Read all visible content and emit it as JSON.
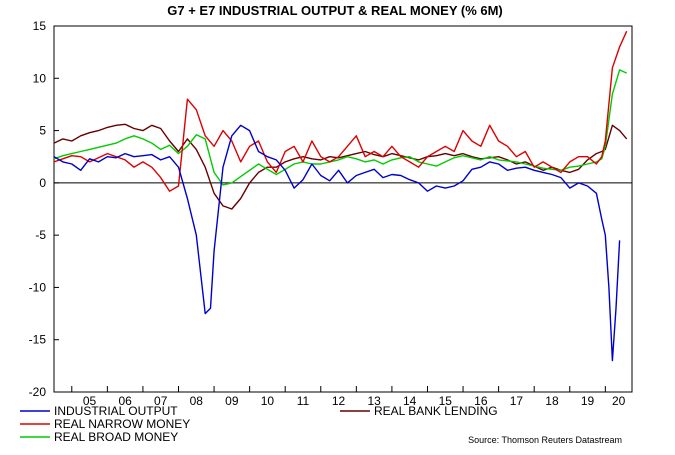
{
  "chart_data": {
    "type": "line",
    "title": "G7 + E7 INDUSTRIAL OUTPUT & REAL MONEY (% 6M)",
    "ylim": [
      -20,
      15
    ],
    "yticks": [
      15,
      10,
      5,
      0,
      -5,
      -10,
      -15,
      -20
    ],
    "ytick_labels": [
      "15",
      "10",
      "5",
      "0",
      "-5",
      "-10",
      "-15",
      "-20"
    ],
    "xlim": [
      2004.5,
      2020.75
    ],
    "xticks": [
      2005,
      2006,
      2007,
      2008,
      2009,
      2010,
      2011,
      2012,
      2013,
      2014,
      2015,
      2016,
      2017,
      2018,
      2019,
      2020
    ],
    "xtick_labels": [
      "05",
      "06",
      "07",
      "08",
      "09",
      "10",
      "11",
      "12",
      "13",
      "14",
      "15",
      "16",
      "17",
      "18",
      "19",
      "20"
    ],
    "zero_line": true,
    "source": "Source: Thomson Reuters Datastream",
    "series": [
      {
        "name": "INDUSTRIAL OUTPUT",
        "color": "#0000cc",
        "x": [
          2004.5,
          2004.75,
          2005.0,
          2005.25,
          2005.5,
          2005.75,
          2006.0,
          2006.25,
          2006.5,
          2006.75,
          2007.0,
          2007.25,
          2007.5,
          2007.75,
          2008.0,
          2008.25,
          2008.5,
          2008.75,
          2008.9,
          2009.0,
          2009.25,
          2009.5,
          2009.75,
          2010.0,
          2010.25,
          2010.5,
          2010.75,
          2011.0,
          2011.25,
          2011.5,
          2011.75,
          2012.0,
          2012.25,
          2012.5,
          2012.75,
          2013.0,
          2013.25,
          2013.5,
          2013.75,
          2014.0,
          2014.25,
          2014.5,
          2014.75,
          2015.0,
          2015.25,
          2015.5,
          2015.75,
          2016.0,
          2016.25,
          2016.5,
          2016.75,
          2017.0,
          2017.25,
          2017.5,
          2017.75,
          2018.0,
          2018.25,
          2018.5,
          2018.75,
          2019.0,
          2019.25,
          2019.5,
          2019.75,
          2019.9,
          2020.0,
          2020.1,
          2020.2,
          2020.3,
          2020.4
        ],
        "values": [
          2.5,
          2.0,
          1.8,
          1.2,
          2.3,
          2.0,
          2.5,
          2.4,
          2.8,
          2.5,
          2.6,
          2.7,
          2.2,
          2.5,
          1.5,
          -1.5,
          -5.0,
          -12.5,
          -12.0,
          -6.5,
          1.5,
          4.5,
          5.5,
          5.0,
          3.0,
          2.5,
          2.2,
          1.2,
          -0.5,
          0.3,
          1.8,
          0.7,
          0.2,
          1.2,
          0.0,
          0.7,
          1.0,
          1.3,
          0.5,
          0.8,
          0.7,
          0.3,
          0.0,
          -0.8,
          -0.3,
          -0.5,
          -0.3,
          0.2,
          1.3,
          1.5,
          2.0,
          1.8,
          1.2,
          1.4,
          1.5,
          1.2,
          1.0,
          0.8,
          0.5,
          -0.5,
          0.0,
          -0.3,
          -1.0,
          -3.5,
          -5.0,
          -10.0,
          -17.0,
          -12.0,
          -5.5
        ]
      },
      {
        "name": "REAL NARROW MONEY",
        "color": "#dd0000",
        "x": [
          2004.5,
          2004.75,
          2005.0,
          2005.25,
          2005.5,
          2005.75,
          2006.0,
          2006.25,
          2006.5,
          2006.75,
          2007.0,
          2007.25,
          2007.5,
          2007.75,
          2008.0,
          2008.25,
          2008.5,
          2008.75,
          2009.0,
          2009.25,
          2009.5,
          2009.75,
          2010.0,
          2010.25,
          2010.5,
          2010.75,
          2011.0,
          2011.25,
          2011.5,
          2011.75,
          2012.0,
          2012.25,
          2012.5,
          2012.75,
          2013.0,
          2013.25,
          2013.5,
          2013.75,
          2014.0,
          2014.25,
          2014.5,
          2014.75,
          2015.0,
          2015.25,
          2015.5,
          2015.75,
          2016.0,
          2016.25,
          2016.5,
          2016.75,
          2017.0,
          2017.25,
          2017.5,
          2017.75,
          2018.0,
          2018.25,
          2018.5,
          2018.75,
          2019.0,
          2019.25,
          2019.5,
          2019.75,
          2019.9,
          2020.0,
          2020.2,
          2020.4,
          2020.6
        ],
        "values": [
          2.0,
          2.3,
          2.6,
          2.5,
          2.0,
          2.4,
          2.8,
          2.5,
          2.2,
          1.5,
          2.0,
          1.5,
          0.5,
          -0.8,
          -0.3,
          8.0,
          7.0,
          4.5,
          3.5,
          5.0,
          4.0,
          2.0,
          3.5,
          4.0,
          2.0,
          1.0,
          3.0,
          3.5,
          2.0,
          4.0,
          2.5,
          2.0,
          2.5,
          3.5,
          4.5,
          2.5,
          3.0,
          2.5,
          3.5,
          2.5,
          2.0,
          1.5,
          2.5,
          3.0,
          3.5,
          3.0,
          5.0,
          4.0,
          3.5,
          5.5,
          4.0,
          3.5,
          2.5,
          3.0,
          1.5,
          2.0,
          1.5,
          1.0,
          2.0,
          2.5,
          2.5,
          1.8,
          2.5,
          4.0,
          11.0,
          13.0,
          14.5
        ]
      },
      {
        "name": "REAL BROAD MONEY",
        "color": "#00cc00",
        "x": [
          2004.5,
          2004.75,
          2005.0,
          2005.25,
          2005.5,
          2005.75,
          2006.0,
          2006.25,
          2006.5,
          2006.75,
          2007.0,
          2007.25,
          2007.5,
          2007.75,
          2008.0,
          2008.25,
          2008.5,
          2008.75,
          2009.0,
          2009.25,
          2009.5,
          2009.75,
          2010.0,
          2010.25,
          2010.5,
          2010.75,
          2011.0,
          2011.25,
          2011.5,
          2011.75,
          2012.0,
          2012.25,
          2012.5,
          2012.75,
          2013.0,
          2013.25,
          2013.5,
          2013.75,
          2014.0,
          2014.25,
          2014.5,
          2014.75,
          2015.0,
          2015.25,
          2015.5,
          2015.75,
          2016.0,
          2016.25,
          2016.5,
          2016.75,
          2017.0,
          2017.25,
          2017.5,
          2017.75,
          2018.0,
          2018.25,
          2018.5,
          2018.75,
          2019.0,
          2019.25,
          2019.5,
          2019.75,
          2019.9,
          2020.0,
          2020.2,
          2020.4,
          2020.6
        ],
        "values": [
          2.3,
          2.6,
          2.8,
          3.0,
          3.2,
          3.4,
          3.6,
          3.8,
          4.2,
          4.5,
          4.2,
          3.8,
          3.2,
          3.6,
          2.8,
          3.5,
          4.6,
          4.2,
          1.0,
          -0.2,
          0.0,
          0.6,
          1.2,
          1.8,
          1.3,
          0.8,
          1.3,
          1.8,
          2.0,
          1.8,
          1.8,
          2.0,
          2.2,
          2.5,
          2.3,
          2.0,
          2.2,
          1.8,
          2.2,
          2.4,
          2.5,
          2.0,
          1.8,
          1.6,
          2.0,
          2.4,
          2.6,
          2.4,
          2.2,
          2.5,
          2.2,
          2.1,
          2.0,
          1.8,
          1.6,
          1.4,
          1.3,
          1.2,
          1.5,
          1.6,
          1.8,
          2.0,
          2.3,
          3.5,
          8.5,
          10.8,
          10.5
        ]
      },
      {
        "name": "REAL BANK LENDING",
        "color": "#660000",
        "x": [
          2004.5,
          2004.75,
          2005.0,
          2005.25,
          2005.5,
          2005.75,
          2006.0,
          2006.25,
          2006.5,
          2006.75,
          2007.0,
          2007.25,
          2007.5,
          2007.75,
          2008.0,
          2008.25,
          2008.5,
          2008.75,
          2009.0,
          2009.25,
          2009.5,
          2009.75,
          2010.0,
          2010.25,
          2010.5,
          2010.75,
          2011.0,
          2011.25,
          2011.5,
          2011.75,
          2012.0,
          2012.25,
          2012.5,
          2012.75,
          2013.0,
          2013.25,
          2013.5,
          2013.75,
          2014.0,
          2014.25,
          2014.5,
          2014.75,
          2015.0,
          2015.25,
          2015.5,
          2015.75,
          2016.0,
          2016.25,
          2016.5,
          2016.75,
          2017.0,
          2017.25,
          2017.5,
          2017.75,
          2018.0,
          2018.25,
          2018.5,
          2018.75,
          2019.0,
          2019.25,
          2019.5,
          2019.75,
          2019.9,
          2020.0,
          2020.2,
          2020.4,
          2020.6
        ],
        "values": [
          3.8,
          4.2,
          4.0,
          4.5,
          4.8,
          5.0,
          5.3,
          5.5,
          5.6,
          5.2,
          5.0,
          5.5,
          5.2,
          4.0,
          3.0,
          4.2,
          3.2,
          1.5,
          -1.0,
          -2.2,
          -2.5,
          -1.5,
          0.0,
          1.0,
          1.5,
          1.5,
          2.0,
          2.3,
          2.5,
          2.3,
          2.2,
          2.5,
          2.4,
          2.6,
          2.8,
          3.0,
          2.7,
          2.5,
          2.8,
          2.6,
          2.4,
          2.2,
          2.5,
          2.6,
          2.8,
          2.6,
          2.8,
          2.5,
          2.3,
          2.4,
          2.5,
          2.2,
          1.8,
          2.0,
          1.6,
          1.2,
          1.5,
          1.2,
          1.0,
          1.3,
          2.2,
          2.8,
          3.0,
          3.2,
          5.5,
          5.0,
          4.2
        ]
      }
    ],
    "legend": {
      "placement": "bottom"
    }
  }
}
